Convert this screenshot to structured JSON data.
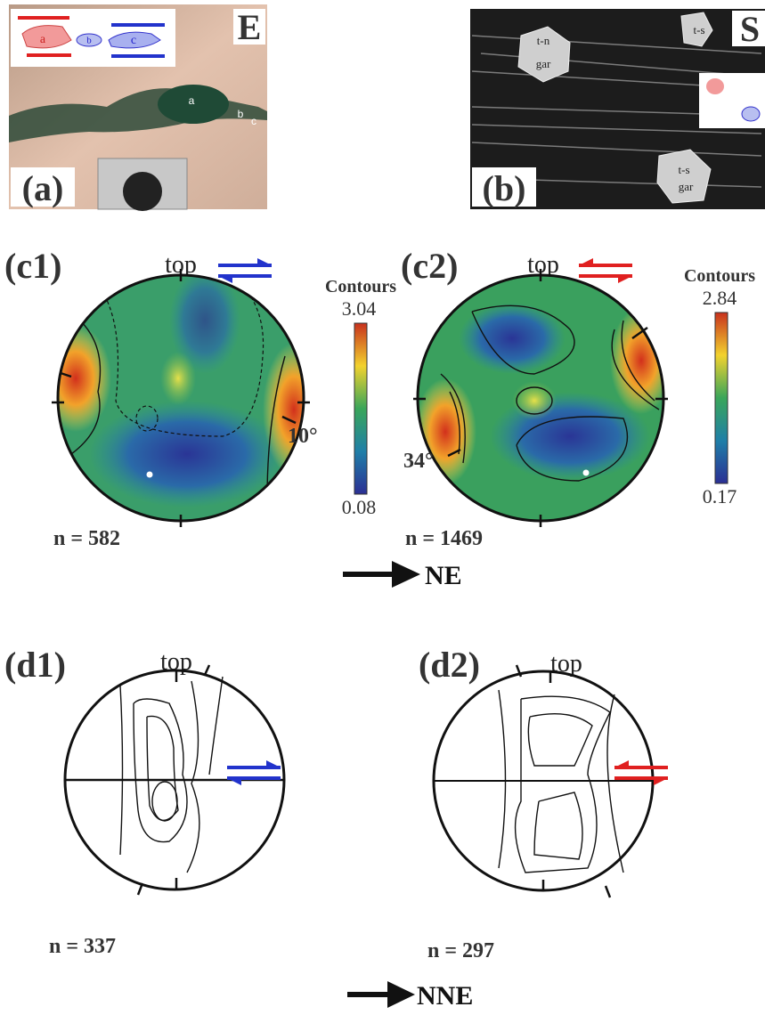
{
  "panels": {
    "a": {
      "label": "(a)",
      "corner": "E",
      "inset": [
        "a",
        "b",
        "c"
      ],
      "clasts": [
        "a",
        "b",
        "c"
      ]
    },
    "b": {
      "label": "(b)",
      "corner": "S",
      "grains": [
        [
          "t-n",
          "gar"
        ],
        [
          "t-s"
        ],
        [
          "t-s",
          "gar"
        ]
      ]
    },
    "c1": {
      "label": "(c1)",
      "top": "top",
      "contours_title": "Contours",
      "max": "3.04",
      "min": "0.08",
      "angle": "10°",
      "n": "n = 582"
    },
    "c2": {
      "label": "(c2)",
      "top": "top",
      "contours_title": "Contours",
      "max": "2.84",
      "min": "0.17",
      "angle": "34°",
      "n": "n = 1469"
    },
    "d1": {
      "label": "(d1)",
      "top": "top",
      "n": "n = 337"
    },
    "d2": {
      "label": "(d2)",
      "top": "top",
      "n": "n = 297"
    }
  },
  "directions": {
    "c": "NE",
    "d": "NNE"
  }
}
